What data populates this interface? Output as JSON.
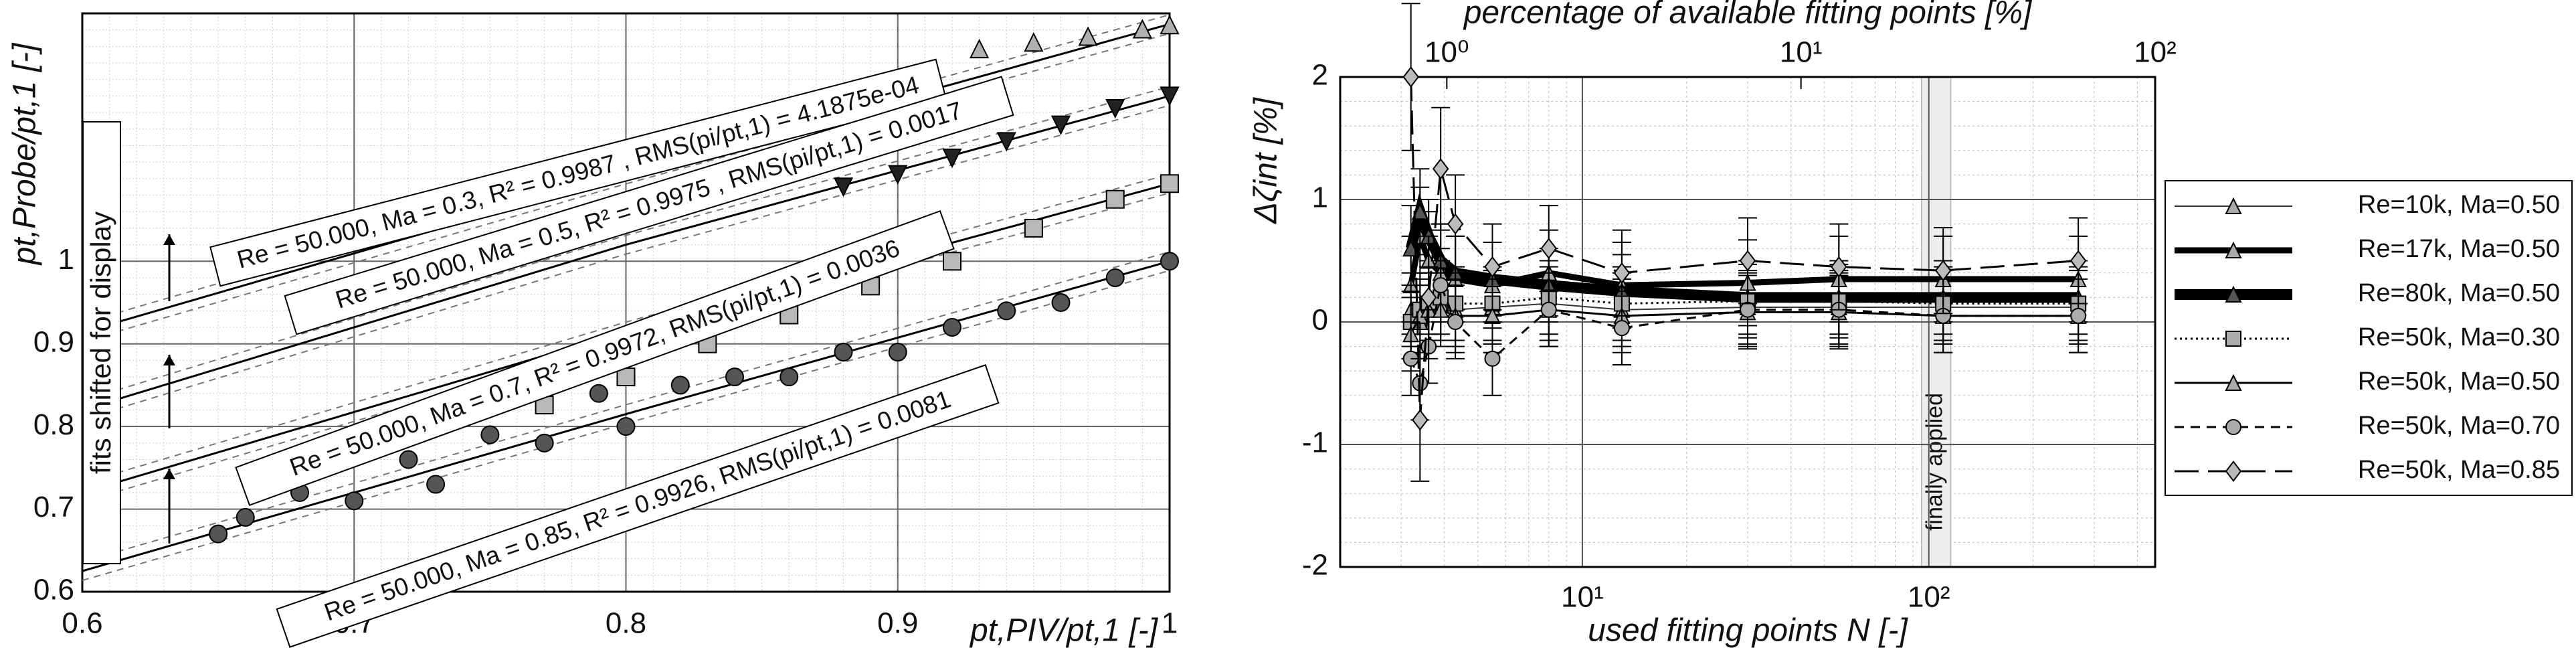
{
  "chart_data": [
    {
      "type": "scatter",
      "xlim": [
        0.6,
        1
      ],
      "ylim": [
        0.6,
        1.3
      ],
      "xticks": [
        0.6,
        0.7,
        0.8,
        0.9,
        1
      ],
      "yticks": [
        0.6,
        0.7,
        0.8,
        0.9,
        1
      ],
      "grid": true,
      "x_label": "pt,PIV/pt,1 [-]",
      "y_label": "pt,Probe/pt,1 [-]",
      "side_note": "fits shifted for display",
      "series": [
        {
          "color": "#b0b0b0",
          "marker": "triangle",
          "x": [
            0.93,
            0.95,
            0.97,
            0.99,
            1.0
          ],
          "values": [
            1.257,
            1.265,
            1.272,
            1.281,
            1.286
          ],
          "fit_x": [
            0.6,
            0.8,
            1
          ],
          "fit_values": [
            0.914,
            1.105,
            1.287
          ]
        },
        {
          "color": "#222222",
          "marker": "triangle-down",
          "x": [
            0.88,
            0.9,
            0.92,
            0.94,
            0.96,
            0.98,
            1.0
          ],
          "values": [
            1.09,
            1.105,
            1.125,
            1.145,
            1.165,
            1.185,
            1.2
          ],
          "fit_x": [
            0.6,
            0.8,
            1
          ],
          "fit_values": [
            0.82,
            1.02,
            1.2
          ]
        },
        {
          "color": "#b8b8b8",
          "marker": "square",
          "x": [
            0.77,
            0.8,
            0.83,
            0.86,
            0.89,
            0.92,
            0.95,
            0.98,
            1.0
          ],
          "values": [
            0.826,
            0.86,
            0.9,
            0.935,
            0.97,
            1.0,
            1.04,
            1.075,
            1.094
          ],
          "fit_x": [
            0.6,
            0.8,
            1
          ],
          "fit_values": [
            0.72,
            0.915,
            1.094
          ]
        },
        {
          "color": "#555555",
          "marker": "circle",
          "x": [
            0.65,
            0.66,
            0.68,
            0.7,
            0.72,
            0.73,
            0.75,
            0.77,
            0.79,
            0.8,
            0.82,
            0.84,
            0.86,
            0.88,
            0.9,
            0.92,
            0.94,
            0.96,
            0.98,
            1.0
          ],
          "values": [
            0.67,
            0.69,
            0.72,
            0.71,
            0.76,
            0.73,
            0.79,
            0.78,
            0.84,
            0.8,
            0.85,
            0.86,
            0.86,
            0.89,
            0.89,
            0.92,
            0.94,
            0.95,
            0.98,
            1.0
          ],
          "fit_x": [
            0.6,
            0.8,
            1
          ],
          "fit_values": [
            0.625,
            0.815,
            1.0
          ]
        }
      ],
      "annotations": [
        "Re = 50.000, Ma = 0.3, R² = 0.9987 , RMS(pi/pt,1) = 4.1875e-04",
        "Re = 50.000, Ma = 0.5, R² = 0.9975 , RMS(pi/pt,1) = 0.0017",
        "Re = 50.000, Ma = 0.7, R² = 0.9972, RMS(pi/pt,1) = 0.0036",
        "Re = 50.000, Ma = 0.85, R² = 0.9926, RMS(pi/pt,1) = 0.0081"
      ]
    },
    {
      "type": "line",
      "x_log": true,
      "xlim": [
        2,
        450
      ],
      "xticks": [
        {
          "value": 10,
          "label": "10¹"
        },
        {
          "value": 100,
          "label": "10²"
        }
      ],
      "x2lim": [
        0.5,
        100
      ],
      "x2ticks": [
        {
          "value": 1,
          "label": "10⁰"
        },
        {
          "value": 10,
          "label": "10¹"
        },
        {
          "value": 100,
          "label": "10²"
        }
      ],
      "ylim": [
        -2,
        2
      ],
      "yticks": [
        -2,
        -1,
        0,
        1,
        2
      ],
      "grid": true,
      "legend": "right",
      "x_label": "used fitting points N [-]",
      "x2_label": "percentage of available fitting points [%]",
      "y_label": "Δζint [%]",
      "annotation": {
        "text": "finally applied",
        "x": 105
      },
      "x": [
        3.2,
        3.4,
        3.6,
        3.9,
        4.3,
        5.5,
        8,
        13,
        30,
        55,
        110,
        270
      ],
      "series": [
        {
          "name": "Re=10k, Ma=0.50",
          "color": "#333333",
          "line_width": 2,
          "dash": "none",
          "marker": "triangle",
          "marker_color": "#aaaaaa",
          "values": [
            0.1,
            0.0,
            0.2,
            0.15,
            0.1,
            0.12,
            0.15,
            0.1,
            0.12,
            0.12,
            0.12,
            0.12
          ],
          "errors": [
            0.3,
            0.3,
            0.3,
            0.3,
            0.3,
            0.3,
            0.3,
            0.3,
            0.3,
            0.3,
            0.3,
            0.3
          ]
        },
        {
          "name": "Re=17k, Ma=0.50",
          "color": "#000000",
          "line_width": 9,
          "dash": "none",
          "marker": "triangle",
          "marker_color": "#aaaaaa",
          "values": [
            0.3,
            0.7,
            0.5,
            0.4,
            0.35,
            0.3,
            0.4,
            0.3,
            0.32,
            0.35,
            0.35,
            0.35
          ],
          "errors": [
            0.4,
            0.4,
            0.4,
            0.4,
            0.35,
            0.35,
            0.35,
            0.35,
            0.35,
            0.35,
            0.35,
            0.35
          ]
        },
        {
          "name": "Re=80k, Ma=0.50",
          "color": "#000000",
          "line_width": 16,
          "dash": "none",
          "marker": "triangle",
          "marker_color": "#555555",
          "values": [
            0.6,
            0.9,
            0.7,
            0.5,
            0.4,
            0.35,
            0.3,
            0.25,
            0.2,
            0.2,
            0.2,
            0.2
          ],
          "errors": [
            0.35,
            0.35,
            0.3,
            0.3,
            0.3,
            0.3,
            0.3,
            0.3,
            0.3,
            0.3,
            0.3,
            0.3
          ]
        },
        {
          "name": "Re=50k, Ma=0.30",
          "color": "#000000",
          "line_width": 3,
          "dash": "3,5",
          "marker": "square",
          "marker_color": "#aaaaaa",
          "values": [
            0.0,
            0.1,
            0.15,
            0.2,
            0.15,
            0.15,
            0.2,
            0.15,
            0.17,
            0.17,
            0.15,
            0.15
          ],
          "errors": [
            0.3,
            0.3,
            0.3,
            0.3,
            0.3,
            0.3,
            0.3,
            0.3,
            0.3,
            0.3,
            0.3,
            0.3
          ]
        },
        {
          "name": "Re=50k, Ma=0.50",
          "color": "#000000",
          "line_width": 3,
          "dash": "none",
          "marker": "triangle",
          "marker_color": "#aaaaaa",
          "values": [
            -0.1,
            0.05,
            0.1,
            0.1,
            0.05,
            0.05,
            0.1,
            0.05,
            0.08,
            0.08,
            0.05,
            0.05
          ],
          "errors": [
            0.3,
            0.3,
            0.3,
            0.3,
            0.3,
            0.3,
            0.3,
            0.3,
            0.3,
            0.3,
            0.3,
            0.3
          ]
        },
        {
          "name": "Re=50k, Ma=0.70",
          "color": "#000000",
          "line_width": 3,
          "dash": "14,10",
          "marker": "circle",
          "marker_color": "#aaaaaa",
          "values": [
            -0.3,
            -0.5,
            -0.2,
            0.3,
            0.0,
            -0.3,
            0.1,
            -0.05,
            0.1,
            0.1,
            0.05,
            0.05
          ],
          "errors": [
            0.3,
            0.3,
            0.3,
            0.3,
            0.3,
            0.3,
            0.3,
            0.3,
            0.3,
            0.3,
            0.3,
            0.3
          ]
        },
        {
          "name": "Re=50k, Ma=0.85",
          "color": "#000000",
          "line_width": 3,
          "dash": "36,14",
          "marker": "diamond",
          "marker_color": "#bbbbbb",
          "values": [
            2.0,
            -0.8,
            0.2,
            1.25,
            0.8,
            0.45,
            0.6,
            0.4,
            0.5,
            0.45,
            0.42,
            0.5
          ],
          "errors": [
            0.6,
            0.5,
            0.5,
            0.5,
            0.4,
            0.35,
            0.35,
            0.35,
            0.35,
            0.35,
            0.35,
            0.35
          ]
        }
      ]
    }
  ]
}
